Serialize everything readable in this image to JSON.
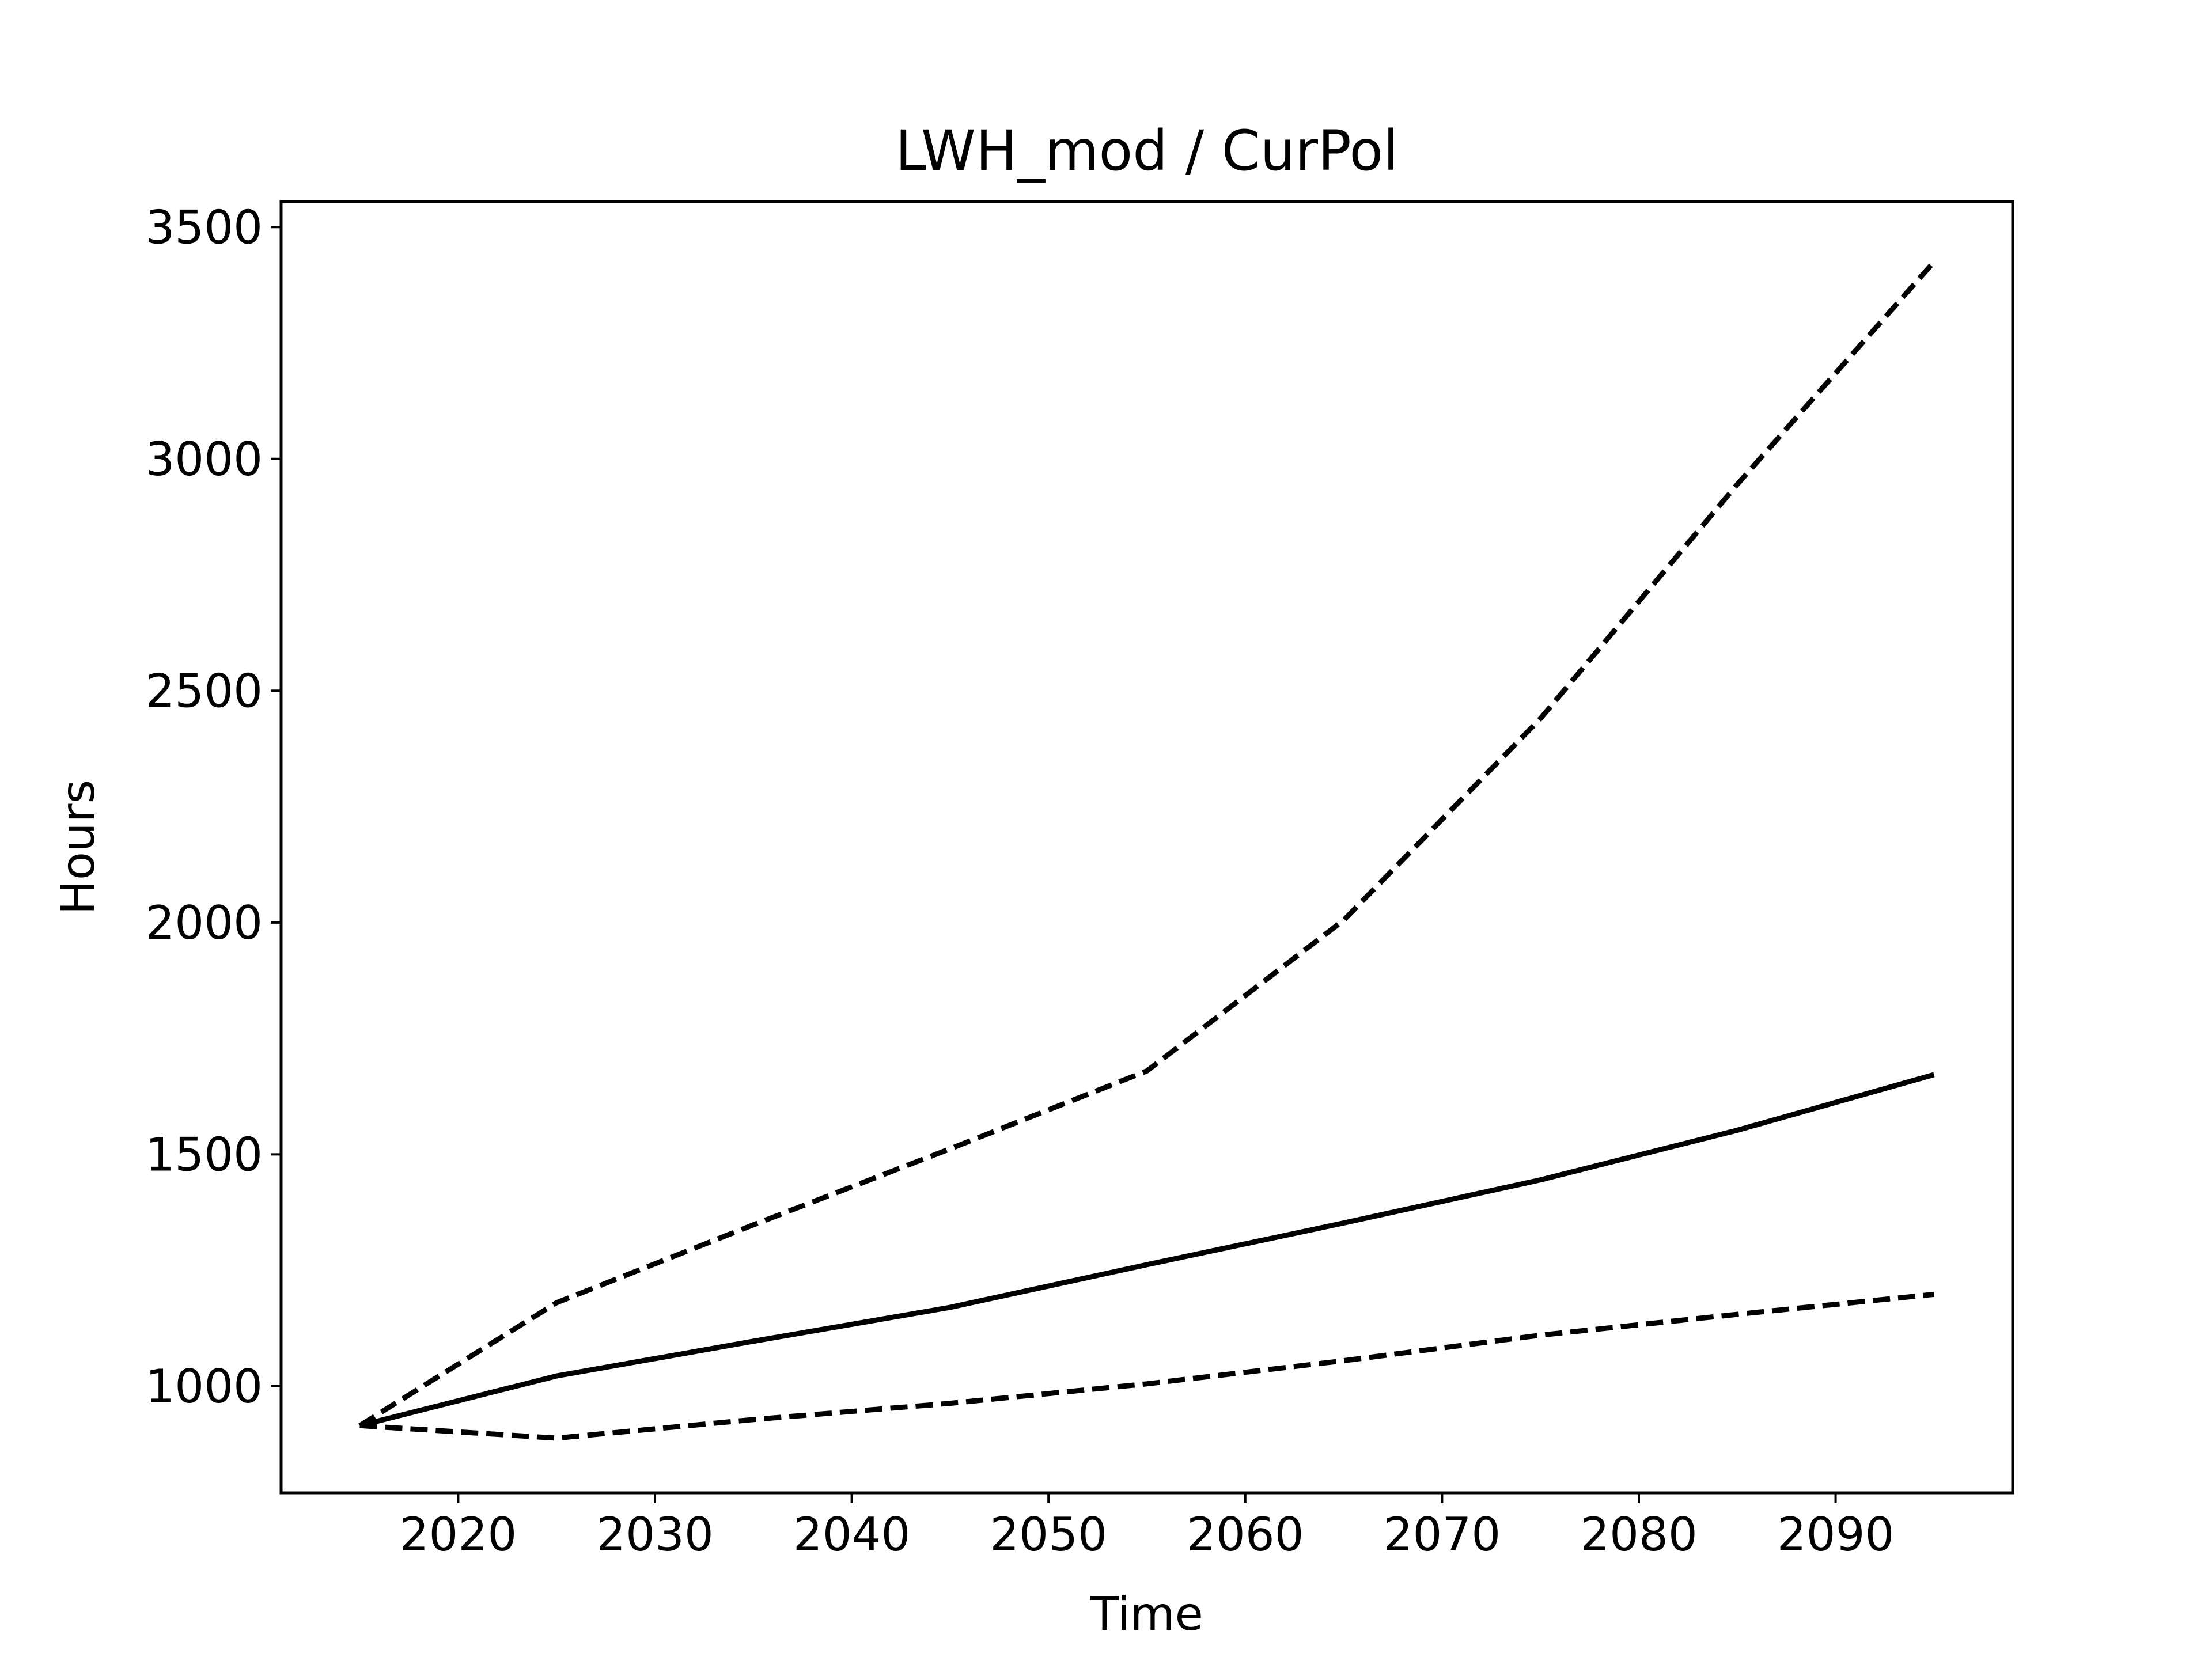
{
  "chart_data": {
    "type": "line",
    "title": "LWH_mod / CurPol",
    "xlabel": "Time",
    "ylabel": "Hours",
    "x": [
      2015,
      2025,
      2035,
      2045,
      2055,
      2065,
      2075,
      2085,
      2095
    ],
    "series": [
      {
        "style": "solid",
        "values": [
          915,
          1022,
          1097,
          1170,
          1262,
          1352,
          1445,
          1552,
          1672
        ]
      },
      {
        "style": "dashed",
        "values": [
          915,
          1180,
          1348,
          1512,
          1680,
          2005,
          2440,
          2945,
          3425
        ]
      },
      {
        "style": "dashed",
        "values": [
          915,
          888,
          928,
          963,
          1005,
          1055,
          1110,
          1155,
          1198
        ]
      }
    ],
    "xlim": [
      2011,
      2099
    ],
    "ylim": [
      770,
      3555
    ],
    "xticks": [
      2020,
      2030,
      2040,
      2050,
      2060,
      2070,
      2080,
      2090
    ],
    "yticks": [
      1000,
      1500,
      2000,
      2500,
      3000,
      3500
    ],
    "grid": false,
    "line_color": "#000000"
  }
}
